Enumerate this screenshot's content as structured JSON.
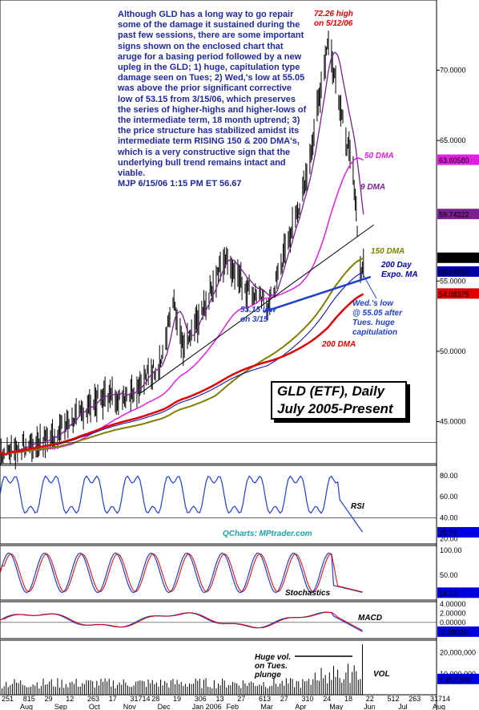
{
  "chart_data": {
    "type": "line",
    "title": "GLD (ETF), Daily",
    "subtitle": "July 2005-Present",
    "commentary": "Although GLD has a long way to go repair some of the damage it sustained during the past few sessions, there are some important signs shown on the enclosed chart that aruge for a basing period followed by a new upleg in the GLD; 1) huge, capitulation type damage seen on Tues; 2) Wed,'s low at 55.05 was above the prior significant corrective low of 53.15 from 3/15/06, which preserves the series of higher-highs and higher-lows of the intermediate term, 18 month uptrend; 3) the price structure has stabilized amidst its intermediate term RISING 150 & 200 DMA's, which is a very constructive sign that the underlying bull trend remains intact and viable.",
    "signature": "MJP  6/15/06 1:15 PM  ET 56.67",
    "watermark": "QCharts: MPtrader.com",
    "price_axis": {
      "ticks": [
        "70.0000",
        "65.0000",
        "55.0000",
        "50.0000",
        "45.0000"
      ],
      "ylim": [
        42,
        75
      ]
    },
    "price_tags": [
      {
        "label": "63.60580",
        "value": 63.6058,
        "color": "#e020e0"
      },
      {
        "label": "59.74222",
        "value": 59.74222,
        "color": "#7a2090"
      },
      {
        "label": "56.6300",
        "value": 56.63,
        "color": "#000000"
      },
      {
        "label": "55.64554",
        "value": 55.64554,
        "color": "#0000aa"
      },
      {
        "label": "54.08375",
        "value": 54.08375,
        "color": "#e00000"
      }
    ],
    "annotations": {
      "high": "72.26 high\non 5/12/06",
      "dma50": "50 DMA",
      "dma9": "9 DMA",
      "dma150": "150 DMA",
      "expo200": "200 Day\nExpo. MA",
      "low315": "53.15 low\non 3/15",
      "wedlow": "Wed.'s low\n@ 55.05 after\nTues. huge\ncapitulation",
      "dma200": "200 DMA",
      "vol_note": "Huge vol.\non Tues.\nplunge"
    },
    "x_axis": {
      "day_labels": [
        "251",
        "815",
        "29",
        "12",
        "263",
        "17",
        "31714",
        "28",
        "19",
        "306",
        "13",
        "27",
        "613",
        "27",
        "310",
        "24",
        "18",
        "22",
        "512",
        "263",
        "31714"
      ],
      "month_labels": [
        "Aug",
        "Sep",
        "Oct",
        "Nov",
        "Dec",
        "Jan 2006",
        "Feb",
        "Mar",
        "Apr",
        "May",
        "Jun",
        "Jul",
        "Aug"
      ]
    },
    "price_key_points": [
      {
        "date": "2005-07-01",
        "close": 42.8
      },
      {
        "date": "2005-08-15",
        "close": 43.8
      },
      {
        "date": "2005-09-30",
        "close": 46.6
      },
      {
        "date": "2005-10-31",
        "close": 47.0
      },
      {
        "date": "2005-11-30",
        "close": 49.2
      },
      {
        "date": "2005-12-12",
        "close": 53.5
      },
      {
        "date": "2005-12-22",
        "close": 49.9
      },
      {
        "date": "2006-01-31",
        "close": 56.6
      },
      {
        "date": "2006-02-20",
        "close": 54.6
      },
      {
        "date": "2006-03-15",
        "close": 53.15
      },
      {
        "date": "2006-04-20",
        "close": 62.0
      },
      {
        "date": "2006-05-12",
        "close": 72.26
      },
      {
        "date": "2006-06-06",
        "close": 62.0
      },
      {
        "date": "2006-06-13",
        "close": 55.05
      },
      {
        "date": "2006-06-15",
        "close": 56.67
      }
    ],
    "series": [
      {
        "name": "9 DMA",
        "color": "#7a2090",
        "last": 59.74222
      },
      {
        "name": "50 DMA",
        "color": "#e020e0",
        "last": 63.6058
      },
      {
        "name": "150 DMA",
        "color": "#808000",
        "last": 56.63
      },
      {
        "name": "200 Day Expo. MA",
        "color": "#0000aa",
        "last": 55.64554
      },
      {
        "name": "200 DMA",
        "color": "#e00000",
        "last": 54.08375
      }
    ],
    "rsi": {
      "label": "RSI",
      "ticks": [
        "80.00",
        "60.00",
        "40.00",
        "20.00"
      ],
      "last": "25.74",
      "ylim": [
        15,
        90
      ]
    },
    "stochastics": {
      "label": "Stochastics",
      "ticks": [
        "100.00",
        "50.00"
      ],
      "last": "14.12",
      "ylim": [
        0,
        110
      ]
    },
    "macd": {
      "label": "MACD",
      "ticks": [
        "4.00000",
        "2.00000",
        "0.00000"
      ],
      "last": "-2.08039",
      "ylim": [
        -3.5,
        4.5
      ]
    },
    "volume": {
      "label": "VOL",
      "ticks": [
        "20,000,000",
        "10,000,000"
      ],
      "last": "7,352,500",
      "ylim": [
        0,
        26000000
      ]
    }
  }
}
